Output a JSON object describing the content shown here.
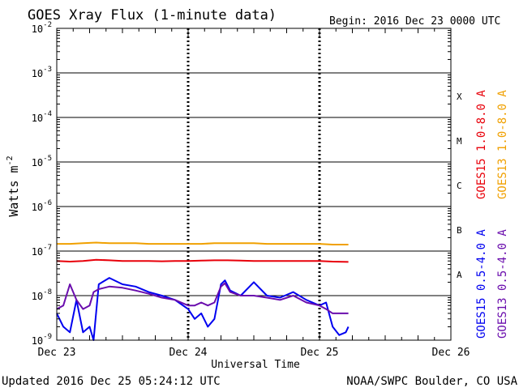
{
  "chart_data": {
    "type": "line",
    "title": "GOES Xray Flux (1-minute data)",
    "begin_text": "Begin:  2016 Dec 23 0000 UTC",
    "ylabel": "Watts m",
    "ylabel_sup": "-2",
    "xlabel": "Universal Time",
    "y_scale": "log",
    "ylim": [
      1e-09,
      0.01
    ],
    "y_ticks": [
      {
        "value": 1e-09,
        "mant": "10",
        "exp": "-9"
      },
      {
        "value": 1e-08,
        "mant": "10",
        "exp": "-8"
      },
      {
        "value": 1e-07,
        "mant": "10",
        "exp": "-7"
      },
      {
        "value": 1e-06,
        "mant": "10",
        "exp": "-6"
      },
      {
        "value": 1e-05,
        "mant": "10",
        "exp": "-5"
      },
      {
        "value": 0.0001,
        "mant": "10",
        "exp": "-4"
      },
      {
        "value": 0.001,
        "mant": "10",
        "exp": "-3"
      },
      {
        "value": 0.01,
        "mant": "10",
        "exp": "-2"
      }
    ],
    "x_ticks": [
      {
        "day": 0,
        "label": "Dec 23"
      },
      {
        "day": 1,
        "label": "Dec 24"
      },
      {
        "day": 2,
        "label": "Dec 25"
      },
      {
        "day": 3,
        "label": "Dec 26"
      }
    ],
    "xlim_days": [
      0,
      3
    ],
    "flare_classes": [
      {
        "label": "A",
        "value": 3e-08
      },
      {
        "label": "B",
        "value": 3e-07
      },
      {
        "label": "C",
        "value": 3e-06
      },
      {
        "label": "M",
        "value": 3e-05
      },
      {
        "label": "X",
        "value": 0.0003
      }
    ],
    "series": [
      {
        "name": "GOES15 1.0-8.0 A",
        "color": "#e8000a",
        "x_days": [
          0.0,
          0.1,
          0.2,
          0.3,
          0.4,
          0.5,
          0.6,
          0.7,
          0.8,
          0.9,
          1.0,
          1.1,
          1.2,
          1.3,
          1.4,
          1.5,
          1.6,
          1.7,
          1.8,
          1.9,
          2.0,
          2.1,
          2.22
        ],
        "values": [
          6e-08,
          5.8e-08,
          6e-08,
          6.4e-08,
          6.2e-08,
          6e-08,
          6e-08,
          6e-08,
          5.9e-08,
          6e-08,
          6e-08,
          6.1e-08,
          6.2e-08,
          6.2e-08,
          6.1e-08,
          6e-08,
          6e-08,
          6e-08,
          6e-08,
          6e-08,
          6e-08,
          5.8e-08,
          5.7e-08
        ]
      },
      {
        "name": "GOES13 1.0-8.0 A",
        "color": "#f0a000",
        "x_days": [
          0.0,
          0.1,
          0.2,
          0.3,
          0.4,
          0.5,
          0.6,
          0.7,
          0.8,
          0.9,
          1.0,
          1.1,
          1.2,
          1.3,
          1.4,
          1.5,
          1.6,
          1.7,
          1.8,
          1.9,
          2.0,
          2.1,
          2.22
        ],
        "values": [
          1.45e-07,
          1.45e-07,
          1.5e-07,
          1.55e-07,
          1.5e-07,
          1.5e-07,
          1.5e-07,
          1.45e-07,
          1.45e-07,
          1.45e-07,
          1.45e-07,
          1.45e-07,
          1.5e-07,
          1.5e-07,
          1.5e-07,
          1.5e-07,
          1.45e-07,
          1.45e-07,
          1.45e-07,
          1.45e-07,
          1.45e-07,
          1.4e-07,
          1.4e-07
        ]
      },
      {
        "name": "GOES15 0.5-4.0 A",
        "color": "#0000f0",
        "x_days": [
          0.0,
          0.05,
          0.1,
          0.15,
          0.2,
          0.25,
          0.28,
          0.32,
          0.4,
          0.5,
          0.6,
          0.7,
          0.8,
          0.9,
          1.0,
          1.05,
          1.1,
          1.15,
          1.2,
          1.25,
          1.28,
          1.32,
          1.4,
          1.5,
          1.6,
          1.7,
          1.8,
          1.9,
          2.0,
          2.05,
          2.1,
          2.15,
          2.2,
          2.22
        ],
        "values": [
          4e-09,
          2e-09,
          1.5e-09,
          8e-09,
          1.5e-09,
          2e-09,
          1e-09,
          1.8e-08,
          2.5e-08,
          1.8e-08,
          1.6e-08,
          1.2e-08,
          1e-08,
          8e-09,
          5e-09,
          3e-09,
          4e-09,
          2e-09,
          3e-09,
          1.8e-08,
          2.2e-08,
          1.3e-08,
          1e-08,
          2e-08,
          1e-08,
          9e-09,
          1.2e-08,
          8e-09,
          6e-09,
          7e-09,
          2e-09,
          1.3e-09,
          1.5e-09,
          2e-09
        ]
      },
      {
        "name": "GOES13 0.5-4.0 A",
        "color": "#6a0dad",
        "x_days": [
          0.0,
          0.05,
          0.1,
          0.15,
          0.2,
          0.25,
          0.28,
          0.32,
          0.4,
          0.5,
          0.6,
          0.7,
          0.8,
          0.9,
          1.0,
          1.05,
          1.1,
          1.15,
          1.2,
          1.25,
          1.28,
          1.32,
          1.4,
          1.5,
          1.6,
          1.7,
          1.8,
          1.9,
          2.0,
          2.05,
          2.1,
          2.15,
          2.2,
          2.22
        ],
        "values": [
          5e-09,
          6e-09,
          1.8e-08,
          8e-09,
          5e-09,
          6e-09,
          1.2e-08,
          1.4e-08,
          1.6e-08,
          1.5e-08,
          1.3e-08,
          1.1e-08,
          9e-09,
          8e-09,
          6e-09,
          6e-09,
          7e-09,
          6e-09,
          7e-09,
          1.6e-08,
          1.9e-08,
          1.2e-08,
          1e-08,
          1e-08,
          9e-09,
          8e-09,
          1e-08,
          7e-09,
          6e-09,
          5e-09,
          4e-09,
          4e-09,
          4e-09,
          4e-09
        ]
      }
    ]
  },
  "footer": {
    "updated": "Updated 2016 Dec 25 05:24:12 UTC",
    "credit": "NOAA/SWPC Boulder, CO USA"
  }
}
